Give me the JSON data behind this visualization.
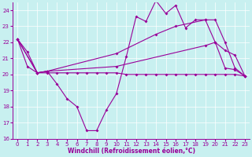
{
  "xlabel": "Windchill (Refroidissement éolien,°C)",
  "bg_color": "#c8f0f0",
  "line_color": "#990099",
  "xlim": [
    -0.5,
    23.5
  ],
  "ylim": [
    16,
    24.5
  ],
  "yticks": [
    16,
    17,
    18,
    19,
    20,
    21,
    22,
    23,
    24
  ],
  "xticks": [
    0,
    1,
    2,
    3,
    4,
    5,
    6,
    7,
    8,
    9,
    10,
    11,
    12,
    13,
    14,
    15,
    16,
    17,
    18,
    19,
    20,
    21,
    22,
    23
  ],
  "lineA_x": [
    0,
    1,
    2,
    3,
    4,
    5,
    6,
    7,
    8,
    9,
    10,
    11,
    12,
    13,
    14,
    15,
    16,
    17,
    18,
    19,
    20,
    21,
    22,
    23
  ],
  "lineA_y": [
    22.2,
    20.5,
    20.1,
    20.1,
    20.1,
    20.1,
    20.1,
    20.1,
    20.1,
    20.1,
    20.1,
    20.0,
    20.0,
    20.0,
    20.0,
    20.0,
    20.0,
    20.0,
    20.0,
    20.0,
    20.0,
    20.0,
    20.0,
    19.9
  ],
  "lineB_x": [
    0,
    1,
    2,
    3,
    4,
    5,
    6,
    7,
    8,
    9,
    10,
    11,
    12,
    13,
    14,
    15,
    16,
    17,
    18,
    19,
    20,
    21,
    22,
    23
  ],
  "lineB_y": [
    22.2,
    21.4,
    20.1,
    20.2,
    19.4,
    18.5,
    18.0,
    16.5,
    16.5,
    17.8,
    18.8,
    21.1,
    23.6,
    23.3,
    24.6,
    23.8,
    24.3,
    22.9,
    23.4,
    23.4,
    22.0,
    20.4,
    20.3,
    19.9
  ],
  "lineC_x": [
    0,
    2,
    3,
    10,
    19,
    20,
    21,
    22,
    23
  ],
  "lineC_y": [
    22.2,
    20.1,
    20.2,
    20.5,
    21.8,
    22.0,
    21.5,
    21.2,
    19.9
  ],
  "lineD_x": [
    0,
    2,
    3,
    10,
    14,
    16,
    19,
    20,
    21,
    22,
    23
  ],
  "lineD_y": [
    22.2,
    20.1,
    20.2,
    21.3,
    22.5,
    23.0,
    23.4,
    23.4,
    22.0,
    20.4,
    19.9
  ]
}
